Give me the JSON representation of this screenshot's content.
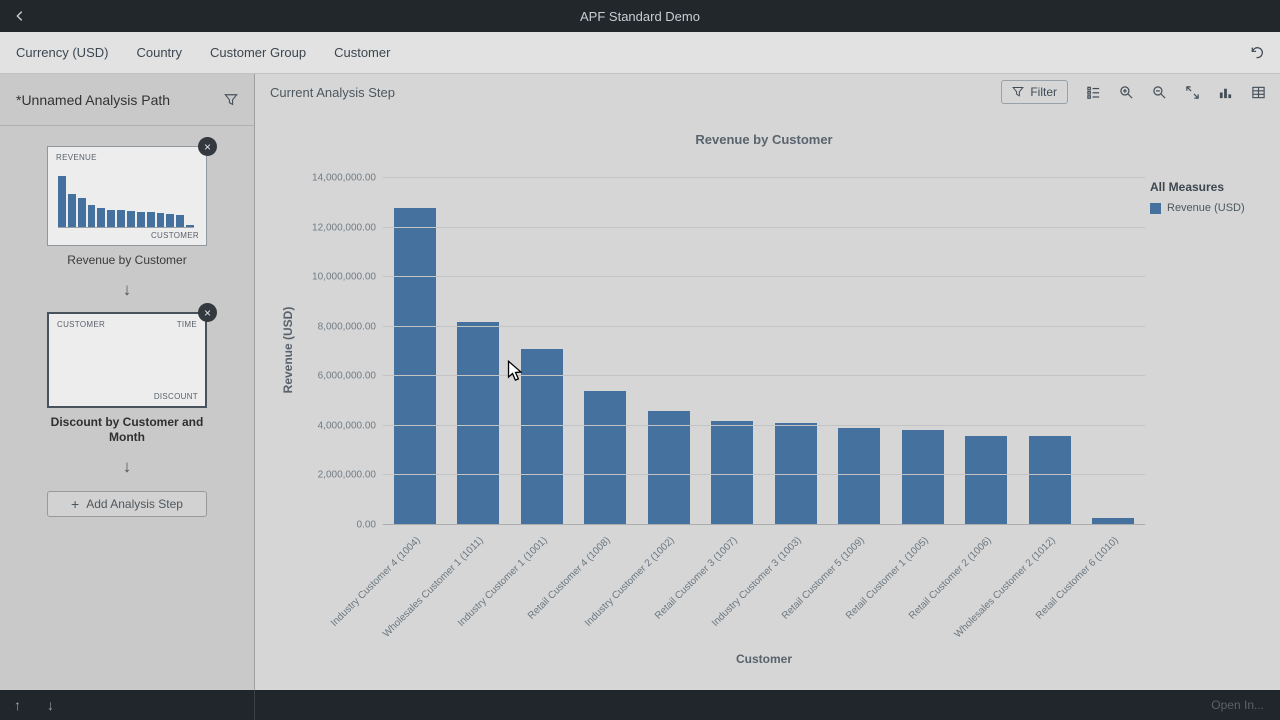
{
  "topbar": {
    "title": "APF Standard Demo"
  },
  "filterbar": {
    "items": [
      "Currency (USD)",
      "Country",
      "Customer Group",
      "Customer"
    ]
  },
  "sidebar": {
    "title": "*Unnamed Analysis Path",
    "steps": [
      {
        "caption": "Revenue by Customer",
        "thumb": {
          "top_left": "REVENUE",
          "bottom_right": "CUSTOMER",
          "bars": [
            100,
            64,
            56,
            44,
            38,
            34,
            33,
            31,
            30,
            29,
            28,
            26,
            24,
            4
          ]
        }
      },
      {
        "caption": "Discount by Customer and Month",
        "thumb": {
          "top_left": "CUSTOMER",
          "top_right": "TIME",
          "bottom_right": "DISCOUNT"
        }
      }
    ],
    "add_step_label": "Add Analysis Step"
  },
  "main": {
    "toolbar": {
      "title": "Current Analysis Step",
      "filter_label": "Filter"
    },
    "legend": {
      "title": "All Measures",
      "items": [
        {
          "label": "Revenue (USD)",
          "color": "#44719e"
        }
      ]
    },
    "open_in_label": "Open In..."
  },
  "chart_data": {
    "type": "bar",
    "title": "Revenue by Customer",
    "xlabel": "Customer",
    "ylabel": "Revenue (USD)",
    "ylim": [
      0,
      14000000
    ],
    "grid": true,
    "legend_position": "right",
    "bar_color": "#44719e",
    "ytick_labels": [
      "0.00",
      "2,000,000.00",
      "4,000,000.00",
      "6,000,000.00",
      "8,000,000.00",
      "10,000,000.00",
      "12,000,000.00",
      "14,000,000.00"
    ],
    "categories": [
      "Industry Customer 4 (1004)",
      "Wholesales Customer 1 (1011)",
      "Industry Customer 1 (1001)",
      "Retail Customer 4 (1008)",
      "Industry Customer 2 (1002)",
      "Retail Customer 3 (1007)",
      "Industry Customer 3 (1003)",
      "Retail Customer 5 (1009)",
      "Retail Customer 1 (1005)",
      "Retail Customer 2 (1006)",
      "Wholesales Customer 2 (1012)",
      "Retail Customer 6 (1010)"
    ],
    "values": [
      12800000,
      8200000,
      7100000,
      5400000,
      4600000,
      4200000,
      4100000,
      3900000,
      3850000,
      3600000,
      3600000,
      300000
    ]
  }
}
